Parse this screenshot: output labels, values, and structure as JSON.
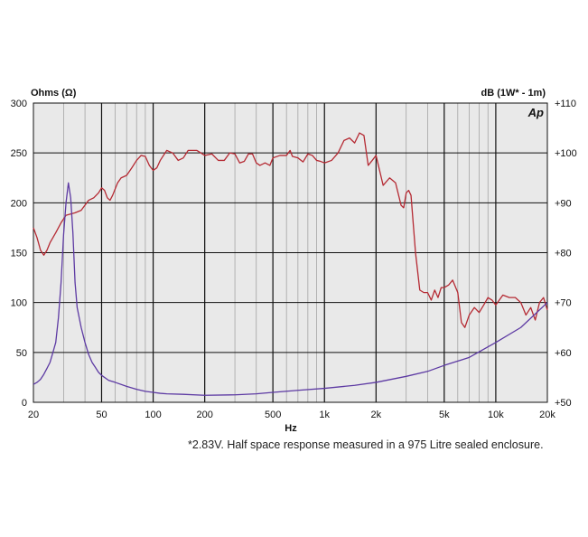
{
  "chart_data": {
    "type": "line",
    "logo": "Ap",
    "xlabel": "Hz",
    "ylabel_left": "Ohms (Ω)",
    "ylabel_right": "dB (1W* - 1m)",
    "x_scale": "log",
    "xlim": [
      20,
      20000
    ],
    "ylim_left": [
      0,
      300
    ],
    "ylim_right": [
      50,
      110
    ],
    "grid": true,
    "x_ticks": [
      {
        "value": 20,
        "label": "20"
      },
      {
        "value": 50,
        "label": "50"
      },
      {
        "value": 100,
        "label": "100"
      },
      {
        "value": 200,
        "label": "200"
      },
      {
        "value": 500,
        "label": "500"
      },
      {
        "value": 1000,
        "label": "1k"
      },
      {
        "value": 2000,
        "label": "2k"
      },
      {
        "value": 5000,
        "label": "5k"
      },
      {
        "value": 10000,
        "label": "10k"
      },
      {
        "value": 20000,
        "label": "20k"
      }
    ],
    "y_ticks_left": [
      "0",
      "50",
      "100",
      "150",
      "200",
      "250",
      "300"
    ],
    "y_ticks_right": [
      "+50",
      "+60",
      "+70",
      "+80",
      "+90",
      "+100",
      "+110"
    ],
    "series": [
      {
        "axis": "right",
        "color": "#b52a33",
        "points": [
          [
            20,
            85
          ],
          [
            21,
            83
          ],
          [
            22,
            80.5
          ],
          [
            23,
            79.5
          ],
          [
            24,
            80.5
          ],
          [
            25,
            82
          ],
          [
            27,
            84
          ],
          [
            29,
            86
          ],
          [
            31,
            87.5
          ],
          [
            35,
            88
          ],
          [
            38,
            88.5
          ],
          [
            42,
            90.5
          ],
          [
            45,
            91
          ],
          [
            48,
            92
          ],
          [
            50,
            93
          ],
          [
            52,
            92.5
          ],
          [
            54,
            91
          ],
          [
            56,
            90.5
          ],
          [
            58,
            91.5
          ],
          [
            62,
            94
          ],
          [
            65,
            95
          ],
          [
            70,
            95.5
          ],
          [
            75,
            97
          ],
          [
            80,
            98.5
          ],
          [
            85,
            99.5
          ],
          [
            90,
            99.3
          ],
          [
            95,
            97.5
          ],
          [
            100,
            96.5
          ],
          [
            105,
            97
          ],
          [
            110,
            98.5
          ],
          [
            120,
            100.5
          ],
          [
            130,
            100
          ],
          [
            140,
            98.5
          ],
          [
            150,
            99
          ],
          [
            160,
            100.5
          ],
          [
            170,
            100.5
          ],
          [
            180,
            100.5
          ],
          [
            190,
            100
          ],
          [
            200,
            99.5
          ],
          [
            220,
            99.8
          ],
          [
            240,
            98.5
          ],
          [
            260,
            98.5
          ],
          [
            280,
            100
          ],
          [
            300,
            99.8
          ],
          [
            320,
            98
          ],
          [
            340,
            98.3
          ],
          [
            360,
            99.8
          ],
          [
            380,
            99.8
          ],
          [
            400,
            98
          ],
          [
            420,
            97.5
          ],
          [
            450,
            98
          ],
          [
            480,
            97.5
          ],
          [
            500,
            99
          ],
          [
            550,
            99.5
          ],
          [
            600,
            99.5
          ],
          [
            630,
            100.5
          ],
          [
            650,
            99.3
          ],
          [
            700,
            99
          ],
          [
            750,
            98.2
          ],
          [
            800,
            99.8
          ],
          [
            850,
            99.5
          ],
          [
            900,
            98.5
          ],
          [
            950,
            98.3
          ],
          [
            1000,
            98
          ],
          [
            1100,
            98.5
          ],
          [
            1200,
            100
          ],
          [
            1300,
            102.5
          ],
          [
            1400,
            103
          ],
          [
            1500,
            102
          ],
          [
            1600,
            104
          ],
          [
            1700,
            103.5
          ],
          [
            1800,
            97.5
          ],
          [
            1900,
            98.5
          ],
          [
            2000,
            99.5
          ],
          [
            2200,
            93.5
          ],
          [
            2400,
            95
          ],
          [
            2600,
            94
          ],
          [
            2800,
            89.5
          ],
          [
            2900,
            89
          ],
          [
            3000,
            92
          ],
          [
            3100,
            92.5
          ],
          [
            3200,
            91.5
          ],
          [
            3400,
            80
          ],
          [
            3600,
            72.5
          ],
          [
            3800,
            72
          ],
          [
            4000,
            72
          ],
          [
            4200,
            70.5
          ],
          [
            4400,
            72.5
          ],
          [
            4600,
            71
          ],
          [
            4800,
            73
          ],
          [
            5000,
            73
          ],
          [
            5300,
            73.5
          ],
          [
            5600,
            74.5
          ],
          [
            6000,
            72
          ],
          [
            6300,
            66
          ],
          [
            6600,
            65
          ],
          [
            7000,
            67.5
          ],
          [
            7500,
            69
          ],
          [
            8000,
            68
          ],
          [
            8500,
            69.5
          ],
          [
            9000,
            71
          ],
          [
            9500,
            70.5
          ],
          [
            10000,
            69.5
          ],
          [
            11000,
            71.5
          ],
          [
            12000,
            71
          ],
          [
            13000,
            71
          ],
          [
            14000,
            70
          ],
          [
            15000,
            67.5
          ],
          [
            16000,
            69
          ],
          [
            17000,
            66.5
          ],
          [
            18000,
            70
          ],
          [
            19000,
            71
          ],
          [
            20000,
            68.5
          ]
        ]
      },
      {
        "axis": "left",
        "color": "#5d3aa3",
        "points": [
          [
            20,
            18
          ],
          [
            21,
            20
          ],
          [
            22,
            23
          ],
          [
            23,
            28
          ],
          [
            24,
            34
          ],
          [
            25,
            40
          ],
          [
            26,
            50
          ],
          [
            27,
            60
          ],
          [
            28,
            85
          ],
          [
            29,
            120
          ],
          [
            30,
            168
          ],
          [
            31,
            200
          ],
          [
            32,
            220
          ],
          [
            33,
            205
          ],
          [
            34,
            170
          ],
          [
            35,
            120
          ],
          [
            36,
            95
          ],
          [
            38,
            75
          ],
          [
            40,
            60
          ],
          [
            42,
            48
          ],
          [
            44,
            40
          ],
          [
            46,
            35
          ],
          [
            48,
            30
          ],
          [
            50,
            27
          ],
          [
            55,
            22
          ],
          [
            60,
            20
          ],
          [
            70,
            16
          ],
          [
            80,
            13
          ],
          [
            90,
            11
          ],
          [
            100,
            10
          ],
          [
            110,
            9
          ],
          [
            120,
            8.5
          ],
          [
            150,
            8
          ],
          [
            200,
            7
          ],
          [
            300,
            7.5
          ],
          [
            400,
            8.5
          ],
          [
            500,
            10
          ],
          [
            700,
            12
          ],
          [
            1000,
            14
          ],
          [
            1500,
            17
          ],
          [
            2000,
            20
          ],
          [
            3000,
            26
          ],
          [
            4000,
            31
          ],
          [
            5000,
            37
          ],
          [
            7000,
            45
          ],
          [
            10000,
            60
          ],
          [
            14000,
            75
          ],
          [
            20000,
            100
          ]
        ]
      }
    ]
  },
  "footnote": "*2.83V. Half space response measured in a 975 Litre sealed enclosure."
}
